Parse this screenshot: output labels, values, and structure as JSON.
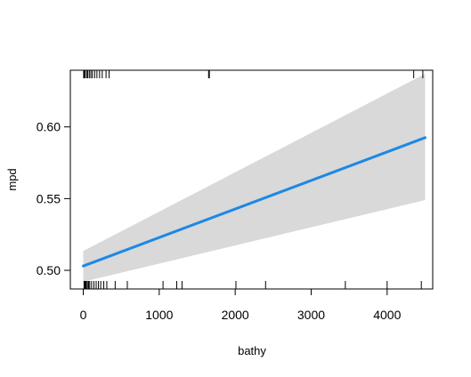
{
  "chart_data": {
    "type": "line",
    "title": "",
    "xlabel": "bathy",
    "ylabel": "mpd",
    "xlim": [
      -170,
      4600
    ],
    "ylim": [
      0.487,
      0.6395
    ],
    "x_ticks": [
      0,
      1000,
      2000,
      3000,
      4000
    ],
    "x_tick_labels": [
      "0",
      "1000",
      "2000",
      "3000",
      "4000"
    ],
    "y_ticks": [
      0.5,
      0.55,
      0.6
    ],
    "y_tick_labels": [
      "0.50",
      "0.55",
      "0.60"
    ],
    "grid": false,
    "legend": "none",
    "series": [
      {
        "x": [
          0,
          4500
        ],
        "y": [
          0.503,
          0.5925
        ],
        "lower": [
          0.492,
          0.549
        ],
        "upper": [
          0.5135,
          0.637
        ]
      }
    ],
    "rug_bottom": [
      10,
      20,
      30,
      40,
      55,
      70,
      85,
      110,
      140,
      170,
      200,
      230,
      270,
      310,
      420,
      580,
      1050,
      1230,
      1300,
      2010,
      2400,
      3450,
      4000,
      4450
    ],
    "rug_top": [
      5,
      15,
      25,
      45,
      60,
      80,
      100,
      120,
      150,
      180,
      215,
      250,
      300,
      340,
      1650,
      1660,
      4350,
      4470
    ],
    "colors": {
      "line": "#1E88E5",
      "band": "#D9D9D9",
      "axis": "#000000"
    }
  }
}
